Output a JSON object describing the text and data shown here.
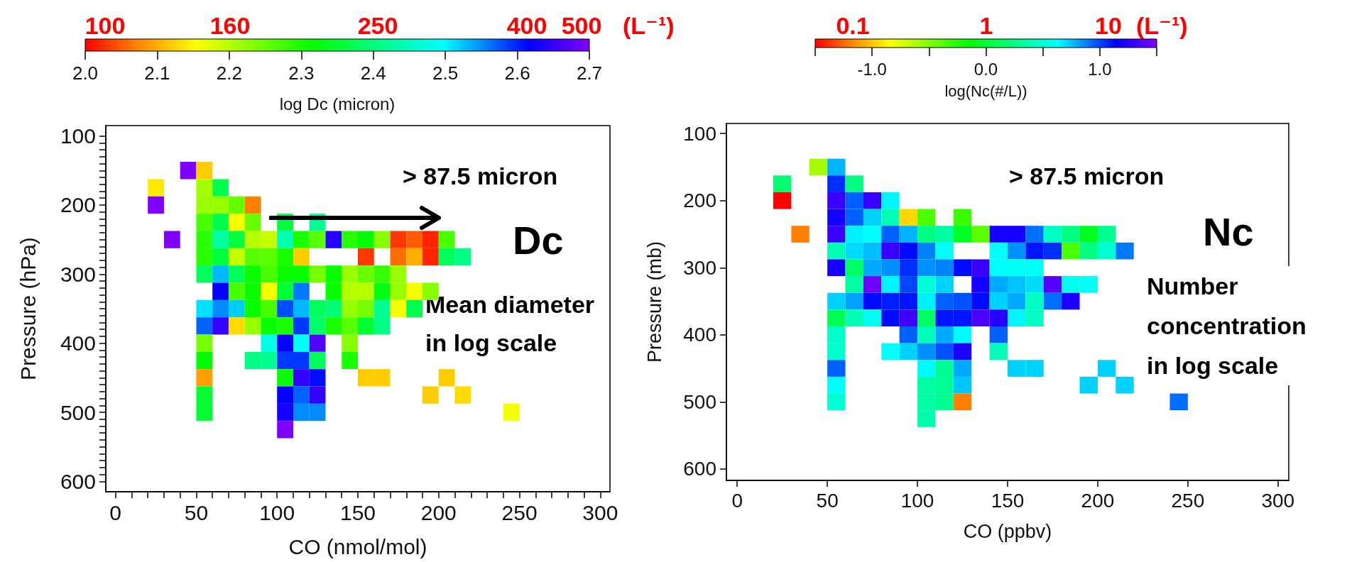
{
  "chart_data": [
    {
      "type": "scatter",
      "marker": "square",
      "xlabel": "CO (nmol/mol)",
      "ylabel": "Pressure (hPa)",
      "clabel": "log Dc (micron)",
      "xlim": [
        -6,
        306
      ],
      "ylim": [
        615,
        85
      ],
      "clim": [
        2.0,
        2.7
      ],
      "xticks": [
        0,
        {
          "value": 10,
          "label": null
        },
        {
          "value": 20,
          "label": null
        },
        {
          "value": 30,
          "label": null
        },
        {
          "value": 40,
          "label": null
        },
        50,
        {
          "value": 60,
          "label": null
        },
        {
          "value": 70,
          "label": null
        },
        {
          "value": 80,
          "label": null
        },
        {
          "value": 90,
          "label": null
        },
        100,
        {
          "value": 110,
          "label": null
        },
        {
          "value": 120,
          "label": null
        },
        {
          "value": 130,
          "label": null
        },
        {
          "value": 140,
          "label": null
        },
        150,
        {
          "value": 160,
          "label": null
        },
        {
          "value": 170,
          "label": null
        },
        {
          "value": 180,
          "label": null
        },
        {
          "value": 190,
          "label": null
        },
        200,
        {
          "value": 210,
          "label": null
        },
        {
          "value": 220,
          "label": null
        },
        {
          "value": 230,
          "label": null
        },
        {
          "value": 240,
          "label": null
        },
        250,
        {
          "value": 260,
          "label": null
        },
        {
          "value": 270,
          "label": null
        },
        {
          "value": 280,
          "label": null
        },
        {
          "value": 290,
          "label": null
        },
        300
      ],
      "yticks": [
        100,
        {
          "value": 110,
          "label": null
        },
        {
          "value": 120,
          "label": null
        },
        {
          "value": 130,
          "label": null
        },
        {
          "value": 140,
          "label": null
        },
        {
          "value": 150,
          "label": null
        },
        {
          "value": 160,
          "label": null
        },
        {
          "value": 170,
          "label": null
        },
        {
          "value": 180,
          "label": null
        },
        {
          "value": 190,
          "label": null
        },
        200,
        {
          "value": 210,
          "label": null
        },
        {
          "value": 220,
          "label": null
        },
        {
          "value": 230,
          "label": null
        },
        {
          "value": 240,
          "label": null
        },
        {
          "value": 250,
          "label": null
        },
        {
          "value": 260,
          "label": null
        },
        {
          "value": 270,
          "label": null
        },
        {
          "value": 280,
          "label": null
        },
        {
          "value": 290,
          "label": null
        },
        300,
        {
          "value": 310,
          "label": null
        },
        {
          "value": 320,
          "label": null
        },
        {
          "value": 330,
          "label": null
        },
        {
          "value": 340,
          "label": null
        },
        {
          "value": 350,
          "label": null
        },
        {
          "value": 360,
          "label": null
        },
        {
          "value": 370,
          "label": null
        },
        {
          "value": 380,
          "label": null
        },
        {
          "value": 390,
          "label": null
        },
        400,
        {
          "value": 410,
          "label": null
        },
        {
          "value": 420,
          "label": null
        },
        {
          "value": 430,
          "label": null
        },
        {
          "value": 440,
          "label": null
        },
        {
          "value": 450,
          "label": null
        },
        {
          "value": 460,
          "label": null
        },
        {
          "value": 470,
          "label": null
        },
        {
          "value": 480,
          "label": null
        },
        {
          "value": 490,
          "label": null
        },
        500,
        {
          "value": 510,
          "label": null
        },
        {
          "value": 520,
          "label": null
        },
        {
          "value": 530,
          "label": null
        },
        {
          "value": 540,
          "label": null
        },
        {
          "value": 550,
          "label": null
        },
        {
          "value": 560,
          "label": null
        },
        {
          "value": 570,
          "label": null
        },
        {
          "value": 580,
          "label": null
        },
        {
          "value": 590,
          "label": null
        },
        600
      ],
      "cticks": [
        {
          "value": 2,
          "label": "2.0"
        },
        2.1,
        2.2,
        2.3,
        2.4,
        2.5,
        2.6,
        2.7
      ],
      "annotations": [
        "> 87.5 micron",
        "Dc",
        "Mean diameter\nin log scale",
        "(L⁻¹)",
        "100",
        "160",
        "250",
        "400",
        "500"
      ],
      "x": [
        45,
        55,
        25,
        55,
        65,
        25,
        55,
        65,
        75,
        85,
        55,
        65,
        75,
        85,
        105,
        125,
        35,
        55,
        65,
        75,
        85,
        95,
        105,
        115,
        125,
        135,
        145,
        155,
        165,
        175,
        185,
        195,
        205,
        55,
        65,
        75,
        85,
        95,
        105,
        115,
        155,
        175,
        185,
        195,
        205,
        215,
        55,
        65,
        75,
        85,
        95,
        105,
        115,
        125,
        135,
        145,
        155,
        165,
        175,
        65,
        75,
        85,
        95,
        105,
        115,
        135,
        145,
        155,
        165,
        175,
        185,
        195,
        55,
        65,
        75,
        85,
        95,
        105,
        115,
        125,
        135,
        145,
        155,
        165,
        175,
        185,
        55,
        65,
        75,
        85,
        95,
        105,
        115,
        125,
        135,
        145,
        155,
        165,
        55,
        95,
        105,
        115,
        125,
        145,
        55,
        85,
        95,
        105,
        115,
        125,
        145,
        55,
        105,
        115,
        125,
        155,
        165,
        205,
        55,
        105,
        115,
        125,
        195,
        215,
        55,
        105,
        115,
        125,
        245,
        105
      ],
      "values": [
        150,
        150,
        175,
        175,
        175,
        200,
        200,
        200,
        200,
        200,
        225,
        225,
        225,
        225,
        225,
        225,
        250,
        250,
        250,
        250,
        250,
        250,
        250,
        250,
        250,
        250,
        250,
        250,
        250,
        250,
        250,
        250,
        250,
        275,
        275,
        275,
        275,
        275,
        275,
        275,
        275,
        275,
        275,
        275,
        275,
        275,
        300,
        300,
        300,
        300,
        300,
        300,
        300,
        300,
        300,
        300,
        300,
        300,
        300,
        325,
        325,
        325,
        325,
        325,
        325,
        325,
        325,
        325,
        325,
        325,
        325,
        325,
        350,
        350,
        350,
        350,
        350,
        350,
        350,
        350,
        350,
        350,
        350,
        350,
        350,
        350,
        375,
        375,
        375,
        375,
        375,
        375,
        375,
        375,
        375,
        375,
        375,
        375,
        400,
        400,
        400,
        400,
        400,
        400,
        425,
        425,
        425,
        425,
        425,
        425,
        425,
        450,
        450,
        450,
        450,
        450,
        450,
        450,
        475,
        475,
        475,
        475,
        475,
        475,
        500,
        500,
        500,
        500,
        500,
        525
      ],
      "cvalues": [
        2.7,
        2.12,
        2.14,
        2.21,
        2.37,
        2.7,
        2.22,
        2.22,
        2.25,
        2.07,
        2.27,
        2.37,
        2.16,
        2.25,
        2.36,
        2.42,
        2.7,
        2.29,
        2.43,
        2.36,
        2.2,
        2.19,
        2.44,
        2.3,
        2.26,
        2.64,
        2.29,
        2.32,
        2.23,
        2.03,
        2.05,
        2.02,
        2.27,
        2.29,
        2.36,
        2.19,
        2.26,
        2.26,
        2.3,
        2.12,
        2.03,
        2.06,
        2.1,
        2.02,
        2.38,
        2.41,
        2.38,
        2.53,
        2.38,
        2.31,
        2.27,
        2.31,
        2.31,
        2.24,
        2.31,
        2.22,
        2.25,
        2.28,
        2.22,
        2.62,
        2.27,
        2.31,
        2.16,
        2.35,
        2.56,
        2.31,
        2.2,
        2.2,
        2.33,
        2.22,
        2.16,
        2.23,
        2.51,
        2.55,
        2.52,
        2.31,
        2.27,
        2.58,
        2.53,
        2.38,
        2.4,
        2.22,
        2.24,
        2.42,
        2.16,
        2.37,
        2.57,
        2.65,
        2.13,
        2.22,
        2.31,
        2.3,
        2.59,
        2.39,
        2.3,
        2.26,
        2.35,
        2.41,
        2.24,
        2.48,
        2.62,
        2.49,
        2.67,
        2.23,
        2.32,
        2.41,
        2.42,
        2.59,
        2.59,
        2.38,
        2.3,
        2.09,
        2.31,
        2.65,
        2.61,
        2.12,
        2.12,
        2.12,
        2.35,
        2.62,
        2.57,
        2.65,
        2.12,
        2.13,
        2.35,
        2.63,
        2.55,
        2.55,
        2.16,
        2.7
      ]
    },
    {
      "type": "scatter",
      "marker": "square",
      "xlabel": "CO (ppbv)",
      "ylabel": "Pressure (mb)",
      "clabel": "log(Nc(#/L))",
      "xlim": [
        -6,
        306
      ],
      "ylim": [
        617,
        85
      ],
      "clim": [
        -1.5,
        1.5
      ],
      "xticks": [
        0,
        50,
        100,
        150,
        200,
        250,
        300
      ],
      "yticks": [
        100,
        200,
        300,
        400,
        500,
        600
      ],
      "cticks": [
        {
          "value": -1.5,
          "label": null
        },
        {
          "value": -1,
          "label": "-1.0"
        },
        {
          "value": -0.5,
          "label": null
        },
        {
          "value": 0,
          "label": "0.0"
        },
        {
          "value": 0.5,
          "label": null
        },
        {
          "value": 1,
          "label": "1.0"
        },
        {
          "value": 1.5,
          "label": null
        }
      ],
      "annotations": [
        "> 87.5 micron",
        "Nc",
        "Number\nconcentration\nin log scale",
        "(L⁻¹)",
        "0.1",
        "1",
        "10"
      ],
      "x": [
        45,
        55,
        25,
        55,
        65,
        25,
        55,
        65,
        75,
        85,
        55,
        65,
        75,
        85,
        95,
        105,
        125,
        35,
        55,
        65,
        75,
        85,
        95,
        105,
        115,
        125,
        135,
        145,
        155,
        165,
        175,
        185,
        195,
        205,
        55,
        65,
        75,
        85,
        95,
        105,
        115,
        145,
        155,
        165,
        175,
        185,
        195,
        205,
        215,
        55,
        65,
        75,
        85,
        95,
        105,
        115,
        125,
        135,
        145,
        155,
        165,
        65,
        75,
        85,
        95,
        105,
        115,
        135,
        145,
        155,
        165,
        175,
        185,
        195,
        55,
        65,
        75,
        85,
        95,
        105,
        115,
        125,
        135,
        145,
        155,
        165,
        175,
        185,
        55,
        65,
        75,
        85,
        95,
        105,
        115,
        125,
        135,
        145,
        155,
        165,
        55,
        95,
        105,
        115,
        125,
        145,
        55,
        85,
        95,
        105,
        115,
        125,
        145,
        55,
        105,
        115,
        125,
        155,
        165,
        205,
        55,
        105,
        115,
        125,
        195,
        215,
        55,
        105,
        115,
        125,
        245,
        105
      ],
      "values": [
        150,
        150,
        175,
        175,
        175,
        200,
        200,
        200,
        200,
        200,
        225,
        225,
        225,
        225,
        225,
        225,
        225,
        250,
        250,
        250,
        250,
        250,
        250,
        250,
        250,
        250,
        250,
        250,
        250,
        250,
        250,
        250,
        250,
        250,
        275,
        275,
        275,
        275,
        275,
        275,
        275,
        275,
        275,
        275,
        275,
        275,
        275,
        275,
        275,
        300,
        300,
        300,
        300,
        300,
        300,
        300,
        300,
        300,
        300,
        300,
        300,
        325,
        325,
        325,
        325,
        325,
        325,
        325,
        325,
        325,
        325,
        325,
        325,
        325,
        350,
        350,
        350,
        350,
        350,
        350,
        350,
        350,
        350,
        350,
        350,
        350,
        350,
        350,
        375,
        375,
        375,
        375,
        375,
        375,
        375,
        375,
        375,
        375,
        375,
        375,
        400,
        400,
        400,
        400,
        400,
        400,
        425,
        425,
        425,
        425,
        425,
        425,
        425,
        450,
        450,
        450,
        450,
        450,
        450,
        450,
        475,
        475,
        475,
        475,
        475,
        475,
        500,
        500,
        500,
        500,
        500,
        525
      ],
      "cvalues": [
        -0.6,
        0.78,
        0.2,
        1.05,
        0.25,
        -1.5,
        1.3,
        0.95,
        1.3,
        0.65,
        1.2,
        0.95,
        0.72,
        0.4,
        -0.95,
        -0.35,
        -0.3,
        -1.2,
        1.3,
        0.66,
        0.62,
        0.95,
        0.78,
        0.25,
        0.35,
        -0.05,
        -0.4,
        1.2,
        1.2,
        0.92,
        0.45,
        0.25,
        -0.05,
        0.3,
        0.4,
        0.7,
        0.76,
        1.3,
        1.12,
        0.88,
        0.62,
        0.62,
        0.85,
        1.1,
        1.05,
        -0.35,
        0.25,
        0.48,
        0.9,
        1.2,
        0.15,
        0.8,
        0.85,
        1.05,
        0.85,
        0.88,
        1.12,
        1.3,
        0.62,
        0.6,
        0.6,
        0.35,
        1.45,
        0.65,
        1.0,
        0.5,
        0.72,
        1.2,
        0.8,
        0.75,
        0.7,
        1.38,
        0.58,
        0.6,
        0.72,
        0.82,
        1.12,
        1.08,
        1.1,
        0.66,
        0.95,
        0.98,
        1.12,
        0.72,
        0.8,
        0.45,
        0.92,
        1.22,
        0.1,
        0.4,
        0.58,
        1.12,
        1.32,
        0.15,
        1.1,
        1.1,
        1.35,
        1.25,
        0.65,
        0.45,
        0.48,
        0.95,
        0.42,
        0.8,
        0.64,
        0.95,
        0.48,
        0.63,
        0.72,
        0.85,
        0.98,
        1.22,
        0.42,
        0.95,
        0.64,
        0.3,
        0.8,
        0.72,
        0.72,
        0.72,
        0.62,
        0.35,
        0.3,
        0.74,
        0.72,
        0.72,
        0.5,
        0.35,
        0.3,
        -1.2,
        0.92,
        0.38
      ]
    }
  ]
}
